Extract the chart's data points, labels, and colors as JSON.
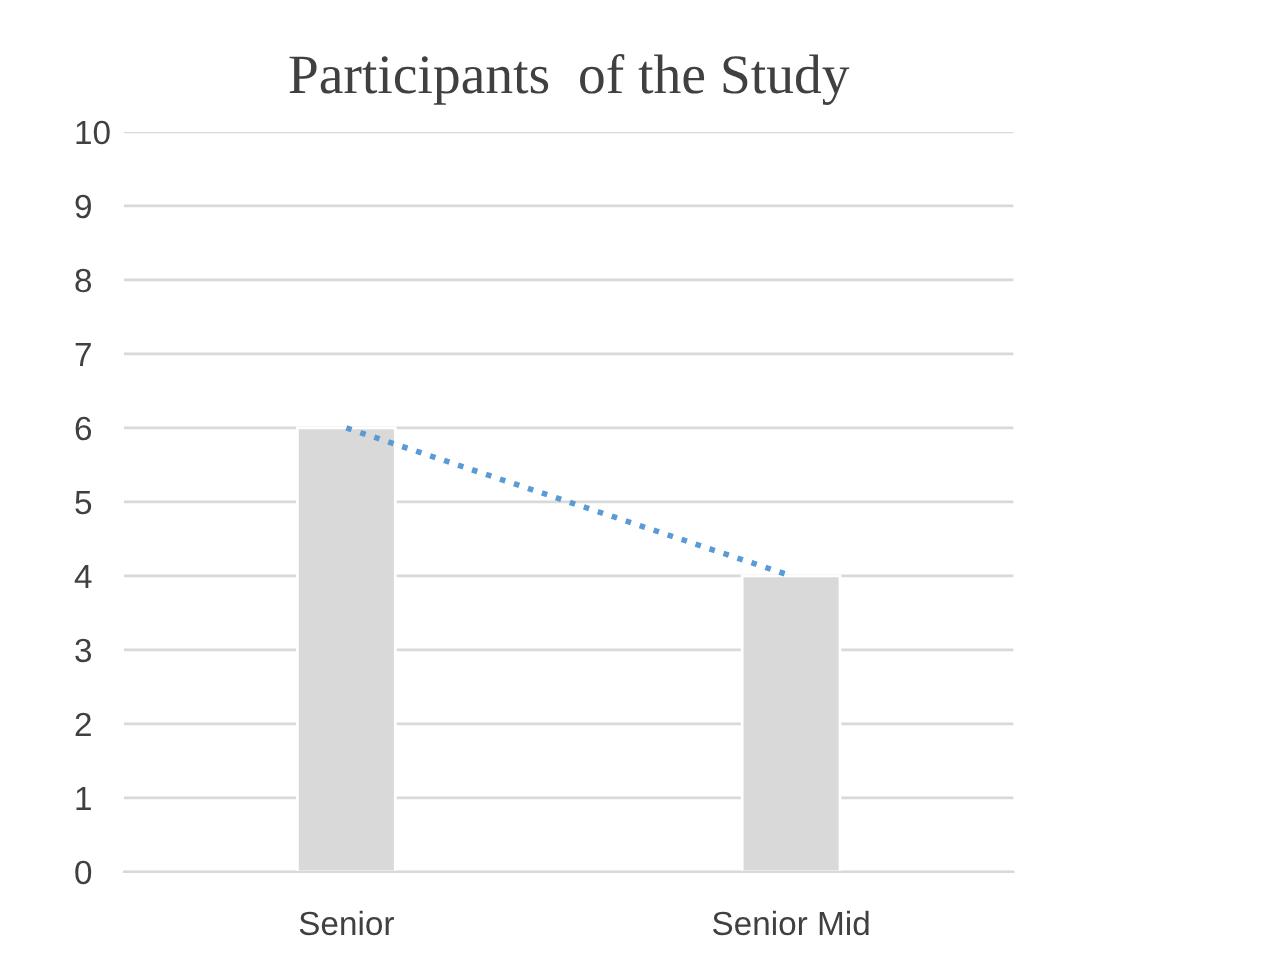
{
  "chart_data": {
    "type": "bar",
    "title": "Participants  of the Study",
    "categories": [
      "Senior",
      "Senior Mid"
    ],
    "series": [
      {
        "color": "#d9d9d9",
        "values": [
          6,
          4
        ]
      },
      {
        "type": "line",
        "color": "#5b9bd5",
        "values": [
          6,
          4
        ],
        "line_style": "dotted"
      }
    ],
    "ylim": [
      0,
      10
    ],
    "yticks": [
      0,
      1,
      2,
      3,
      4,
      5,
      6,
      7,
      8,
      9,
      10
    ],
    "grid": "y",
    "legend": false
  }
}
